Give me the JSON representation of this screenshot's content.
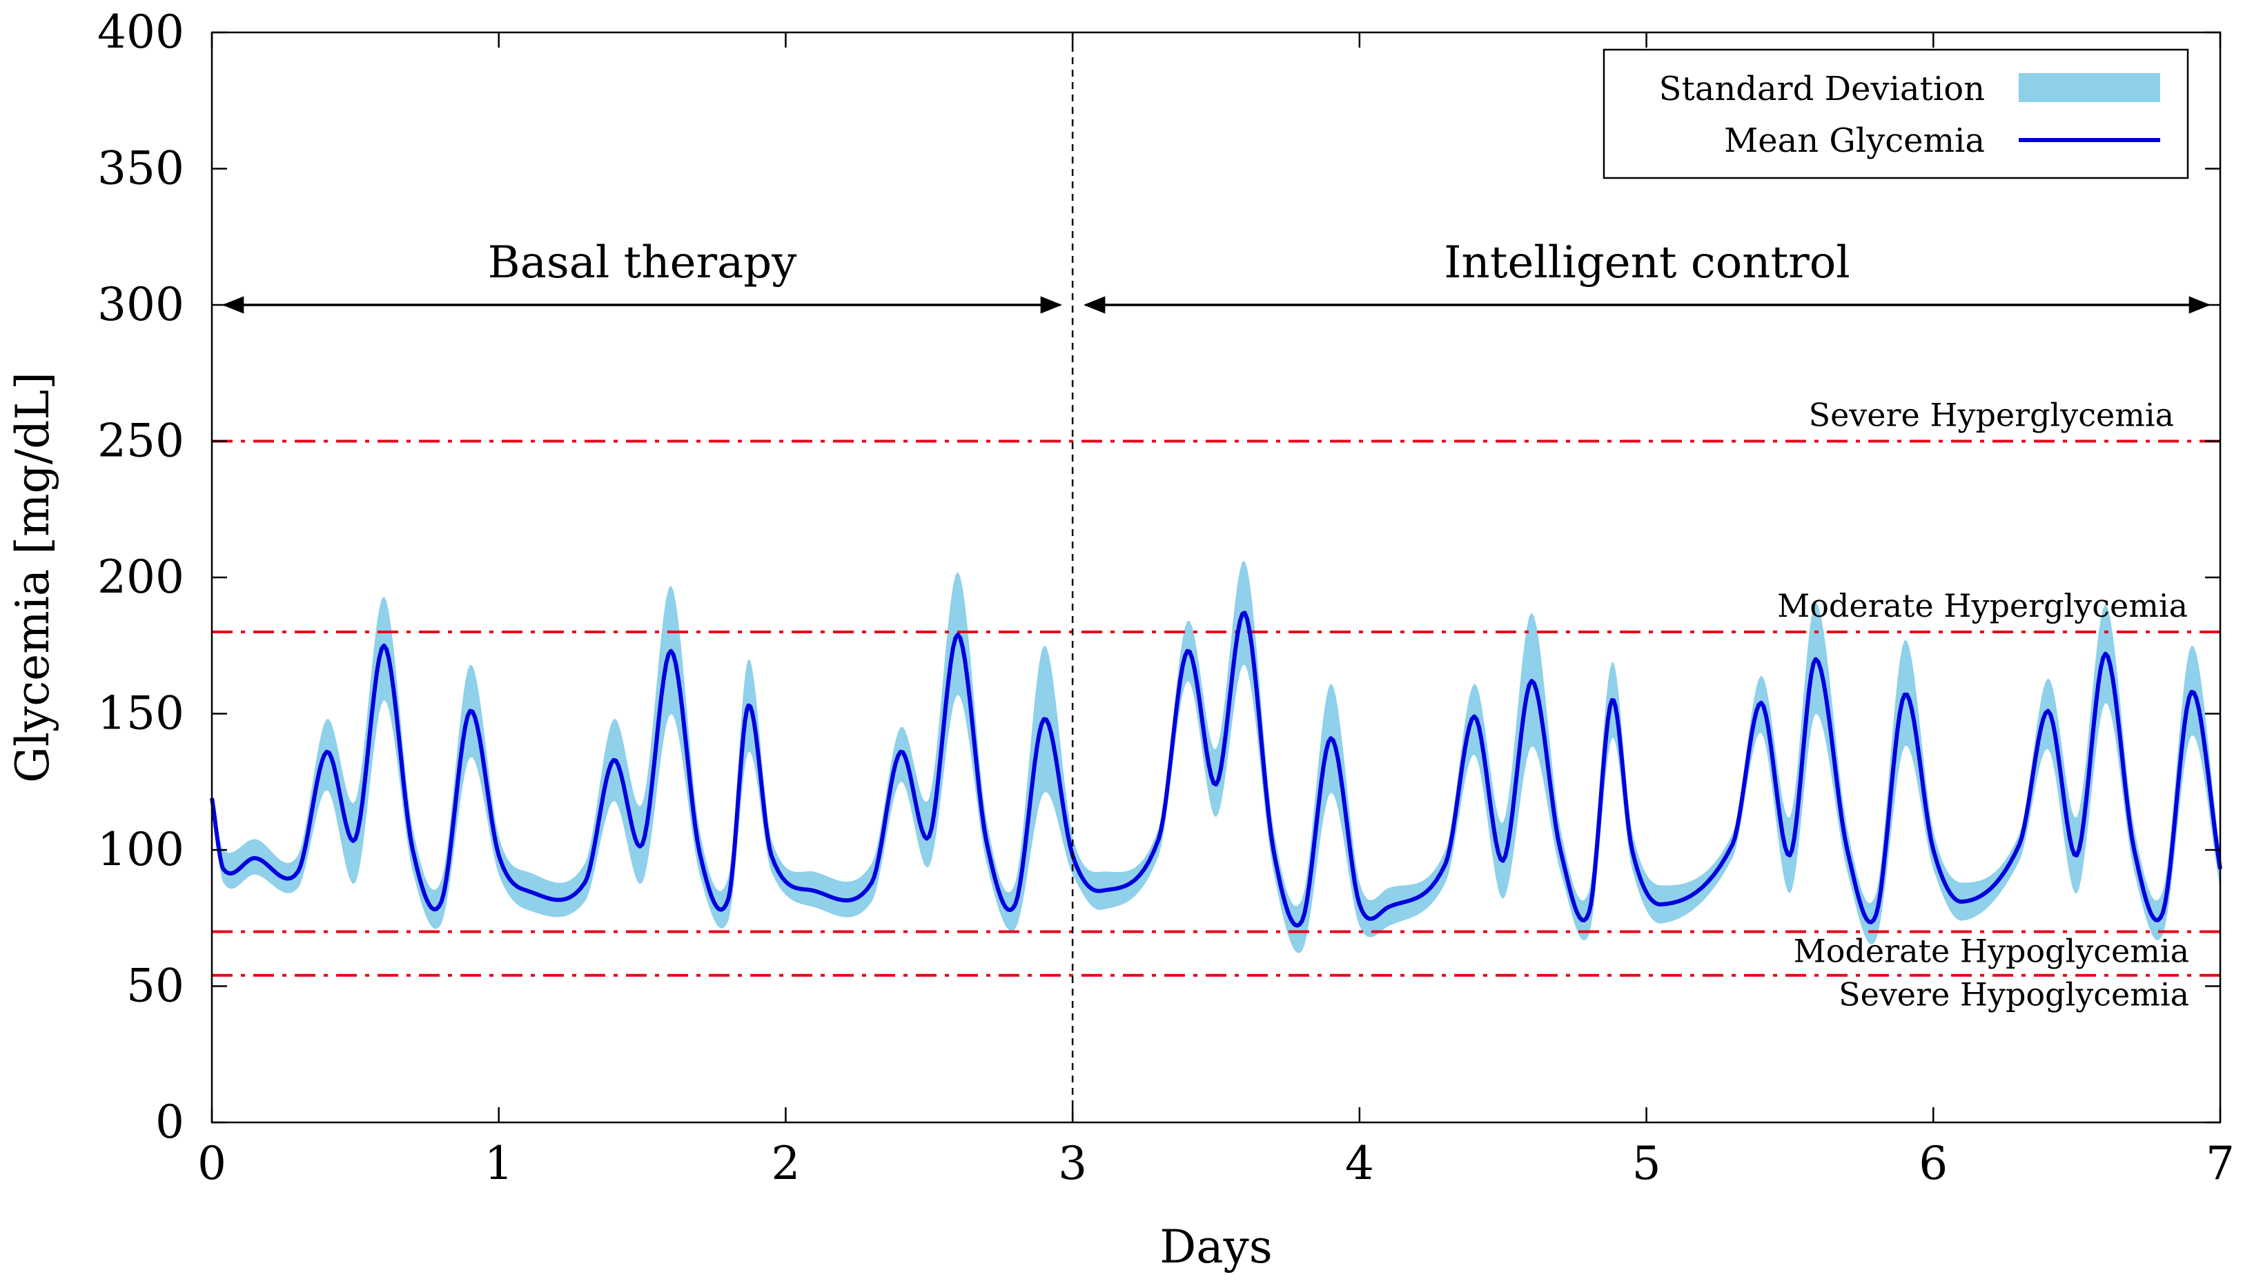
{
  "chart_data": {
    "type": "line",
    "xlabel": "Days",
    "ylabel": "Glycemia [mg/dL]",
    "xlim": [
      0,
      7
    ],
    "ylim": [
      0,
      400
    ],
    "xticks": [
      "0",
      "1",
      "2",
      "3",
      "4",
      "5",
      "6",
      "7"
    ],
    "yticks": [
      "0",
      "50",
      "100",
      "150",
      "200",
      "250",
      "300",
      "350",
      "400"
    ],
    "divider_day": 3,
    "regions": [
      {
        "label": "Basal therapy",
        "from": 0,
        "to": 3
      },
      {
        "label": "Intelligent control",
        "from": 3,
        "to": 7
      }
    ],
    "thresholds": [
      {
        "label": "Severe Hyperglycemia",
        "value": 250
      },
      {
        "label": "Moderate Hyperglycemia",
        "value": 180
      },
      {
        "label": "Moderate Hypoglycemia",
        "value": 70
      },
      {
        "label": "Severe Hypoglycemia",
        "value": 54
      }
    ],
    "legend": {
      "position": "top-right",
      "entries": [
        {
          "label": "Standard Deviation",
          "kind": "band"
        },
        {
          "label": "Mean Glycemia",
          "kind": "line"
        }
      ]
    },
    "colors": {
      "mean": "#0000dd",
      "band": "#8fd0ea",
      "threshold": "#e8001a",
      "divider": "#000000"
    },
    "series": [
      {
        "name": "Mean Glycemia",
        "x": [
          0,
          0.04,
          0.15,
          0.3,
          0.4,
          0.5,
          0.6,
          0.7,
          0.8,
          0.9,
          1.0,
          1.1,
          1.3,
          1.4,
          1.5,
          1.6,
          1.7,
          1.8,
          1.87,
          1.95,
          2.1,
          2.3,
          2.4,
          2.5,
          2.6,
          2.7,
          2.8,
          2.9,
          3.0,
          3.1,
          3.3,
          3.4,
          3.5,
          3.6,
          3.7,
          3.8,
          3.9,
          4.0,
          4.1,
          4.3,
          4.4,
          4.5,
          4.6,
          4.7,
          4.8,
          4.88,
          4.95,
          5.05,
          5.3,
          5.4,
          5.5,
          5.59,
          5.7,
          5.8,
          5.9,
          6.0,
          6.1,
          6.3,
          6.4,
          6.5,
          6.6,
          6.7,
          6.8,
          6.9,
          7.0
        ],
        "y": [
          119,
          93,
          97,
          92,
          136,
          104,
          175,
          100,
          81,
          151,
          98,
          85,
          88,
          133,
          102,
          173,
          99,
          82,
          153,
          98,
          85,
          88,
          136,
          105,
          179,
          103,
          80,
          148,
          98,
          85,
          104,
          173,
          124,
          187,
          100,
          74,
          141,
          80,
          79,
          95,
          149,
          96,
          162,
          100,
          77,
          155,
          100,
          80,
          102,
          154,
          98,
          170,
          100,
          76,
          157,
          100,
          81,
          102,
          151,
          98,
          172,
          100,
          77,
          158,
          93
        ]
      },
      {
        "name": "Standard Deviation",
        "x": [
          0,
          0.04,
          0.15,
          0.3,
          0.4,
          0.5,
          0.6,
          0.7,
          0.8,
          0.9,
          1.0,
          1.1,
          1.3,
          1.4,
          1.5,
          1.6,
          1.7,
          1.8,
          1.87,
          1.95,
          2.1,
          2.3,
          2.4,
          2.5,
          2.6,
          2.7,
          2.8,
          2.9,
          3.0,
          3.1,
          3.3,
          3.4,
          3.5,
          3.6,
          3.7,
          3.8,
          3.9,
          4.0,
          4.1,
          4.3,
          4.4,
          4.5,
          4.6,
          4.7,
          4.8,
          4.88,
          4.95,
          5.05,
          5.3,
          5.4,
          5.5,
          5.59,
          5.7,
          5.8,
          5.9,
          6.0,
          6.1,
          6.3,
          6.4,
          6.5,
          6.6,
          6.7,
          6.8,
          6.9,
          7.0
        ],
        "upper": [
          120,
          100,
          104,
          98,
          148,
          118,
          193,
          108,
          89,
          168,
          105,
          92,
          95,
          148,
          117,
          197,
          107,
          90,
          170,
          104,
          92,
          95,
          145,
          119,
          202,
          111,
          88,
          175,
          105,
          92,
          108,
          184,
          137,
          206,
          108,
          82,
          161,
          88,
          86,
          100,
          161,
          110,
          187,
          108,
          85,
          169,
          107,
          87,
          106,
          164,
          112,
          191,
          108,
          84,
          177,
          107,
          88,
          106,
          163,
          112,
          190,
          108,
          85,
          175,
          99
        ],
        "lower": [
          118,
          88,
          91,
          86,
          122,
          88,
          155,
          92,
          73,
          134,
          91,
          78,
          81,
          118,
          88,
          150,
          91,
          74,
          136,
          92,
          79,
          81,
          125,
          94,
          157,
          95,
          71,
          121,
          91,
          78,
          98,
          162,
          112,
          168,
          92,
          63,
          121,
          72,
          72,
          88,
          135,
          82,
          138,
          92,
          69,
          141,
          93,
          73,
          97,
          143,
          84,
          150,
          92,
          67,
          138,
          93,
          74,
          96,
          137,
          84,
          154,
          92,
          69,
          142,
          86
        ]
      }
    ]
  }
}
